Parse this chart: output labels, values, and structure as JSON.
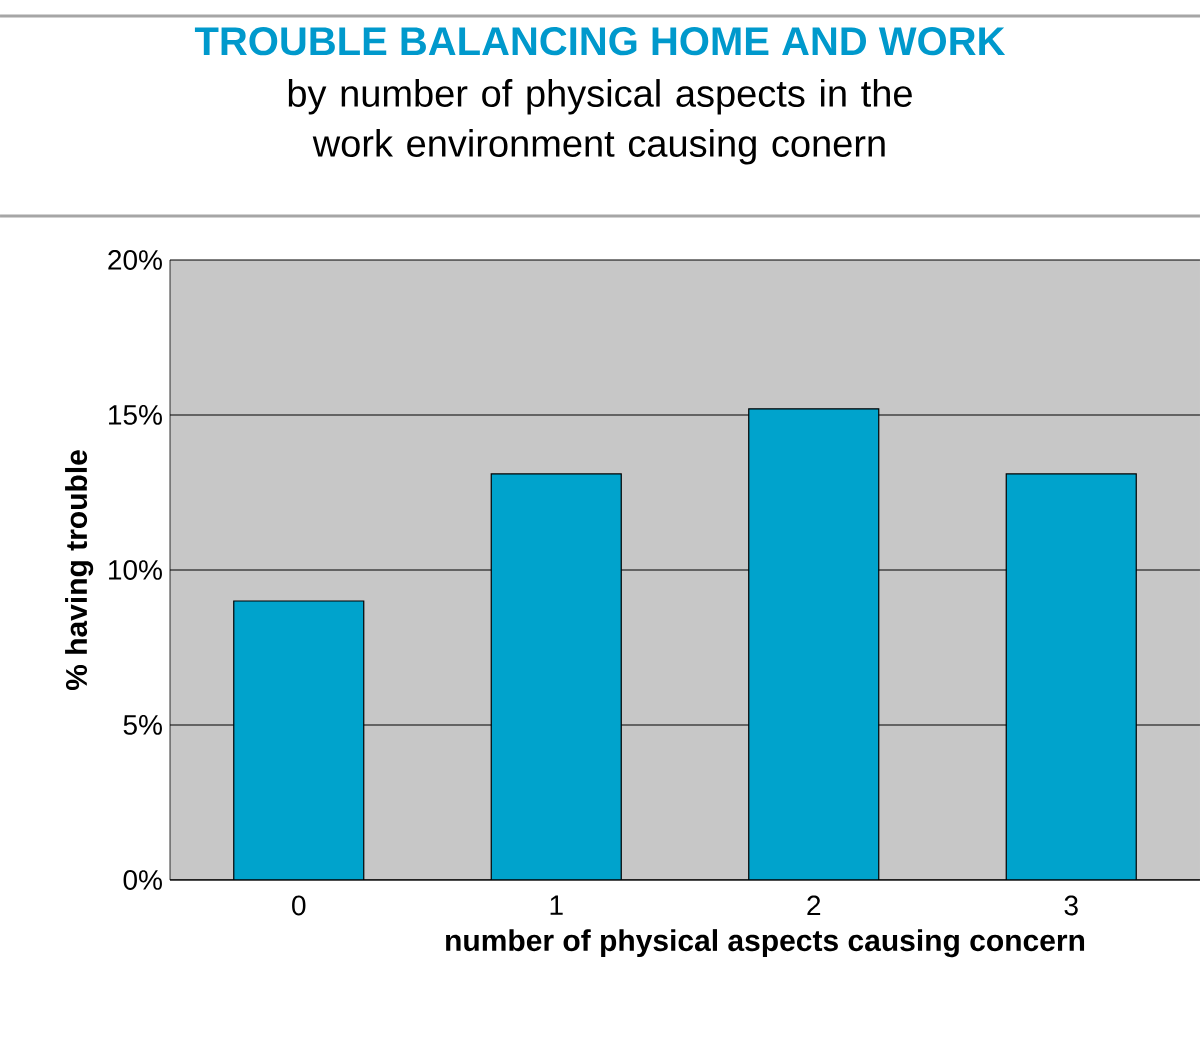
{
  "chart_data": {
    "type": "bar",
    "title": "TROUBLE BALANCING HOME AND WORK",
    "subtitle": "by number of physical aspects in the work environment causing conern",
    "xlabel": "number of physical aspects causing concern",
    "ylabel": "% having trouble",
    "categories": [
      "0",
      "1",
      "2",
      "3"
    ],
    "values": [
      9.0,
      13.1,
      15.2,
      13.1
    ],
    "color": "#00a3cc",
    "ylim": [
      0,
      20
    ],
    "yticks": [
      {
        "value": 0,
        "label": "0%"
      },
      {
        "value": 5,
        "label": "5%"
      },
      {
        "value": 10,
        "label": "10%"
      },
      {
        "value": 15,
        "label": "15%"
      },
      {
        "value": 20,
        "label": "20%"
      }
    ],
    "grid": "y"
  }
}
